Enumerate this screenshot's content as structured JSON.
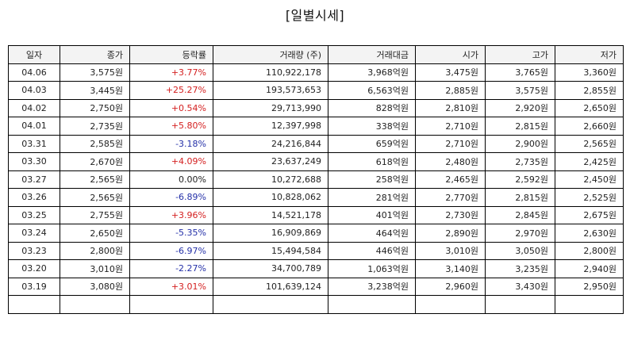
{
  "title": "[일별시세]",
  "columns": [
    "일자",
    "종가",
    "등락률",
    "거래량 (주)",
    "거래대금",
    "시가",
    "고가",
    "저가"
  ],
  "colors": {
    "up": "#d42020",
    "down": "#2430a8",
    "flat": "#222222"
  },
  "rows": [
    {
      "date": "04.06",
      "close": "3,575원",
      "change": "+3.77%",
      "direction": "up",
      "volume": "110,922,178",
      "amount": "3,968억원",
      "open": "3,475원",
      "high": "3,765원",
      "low": "3,360원"
    },
    {
      "date": "04.03",
      "close": "3,445원",
      "change": "+25.27%",
      "direction": "up",
      "volume": "193,573,653",
      "amount": "6,563억원",
      "open": "2,885원",
      "high": "3,575원",
      "low": "2,855원"
    },
    {
      "date": "04.02",
      "close": "2,750원",
      "change": "+0.54%",
      "direction": "up",
      "volume": "29,713,990",
      "amount": "828억원",
      "open": "2,810원",
      "high": "2,920원",
      "low": "2,650원"
    },
    {
      "date": "04.01",
      "close": "2,735원",
      "change": "+5.80%",
      "direction": "up",
      "volume": "12,397,998",
      "amount": "338억원",
      "open": "2,710원",
      "high": "2,815원",
      "low": "2,660원"
    },
    {
      "date": "03.31",
      "close": "2,585원",
      "change": "-3.18%",
      "direction": "down",
      "volume": "24,216,844",
      "amount": "659억원",
      "open": "2,710원",
      "high": "2,900원",
      "low": "2,565원"
    },
    {
      "date": "03.30",
      "close": "2,670원",
      "change": "+4.09%",
      "direction": "up",
      "volume": "23,637,249",
      "amount": "618억원",
      "open": "2,480원",
      "high": "2,735원",
      "low": "2,425원"
    },
    {
      "date": "03.27",
      "close": "2,565원",
      "change": "0.00%",
      "direction": "flat",
      "volume": "10,272,688",
      "amount": "258억원",
      "open": "2,465원",
      "high": "2,592원",
      "low": "2,450원"
    },
    {
      "date": "03.26",
      "close": "2,565원",
      "change": "-6.89%",
      "direction": "down",
      "volume": "10,828,062",
      "amount": "281억원",
      "open": "2,770원",
      "high": "2,815원",
      "low": "2,525원"
    },
    {
      "date": "03.25",
      "close": "2,755원",
      "change": "+3.96%",
      "direction": "up",
      "volume": "14,521,178",
      "amount": "401억원",
      "open": "2,730원",
      "high": "2,845원",
      "low": "2,675원"
    },
    {
      "date": "03.24",
      "close": "2,650원",
      "change": "-5.35%",
      "direction": "down",
      "volume": "16,909,869",
      "amount": "464억원",
      "open": "2,890원",
      "high": "2,970원",
      "low": "2,630원"
    },
    {
      "date": "03.23",
      "close": "2,800원",
      "change": "-6.97%",
      "direction": "down",
      "volume": "15,494,584",
      "amount": "446억원",
      "open": "3,010원",
      "high": "3,050원",
      "low": "2,800원"
    },
    {
      "date": "03.20",
      "close": "3,010원",
      "change": "-2.27%",
      "direction": "down",
      "volume": "34,700,789",
      "amount": "1,063억원",
      "open": "3,140원",
      "high": "3,235원",
      "low": "2,940원"
    },
    {
      "date": "03.19",
      "close": "3,080원",
      "change": "+3.01%",
      "direction": "up",
      "volume": "101,639,124",
      "amount": "3,238억원",
      "open": "2,960원",
      "high": "3,430원",
      "low": "2,950원"
    },
    {
      "date": "",
      "close": "",
      "change": "",
      "direction": "flat",
      "volume": "",
      "amount": "",
      "open": "",
      "high": "",
      "low": ""
    }
  ]
}
